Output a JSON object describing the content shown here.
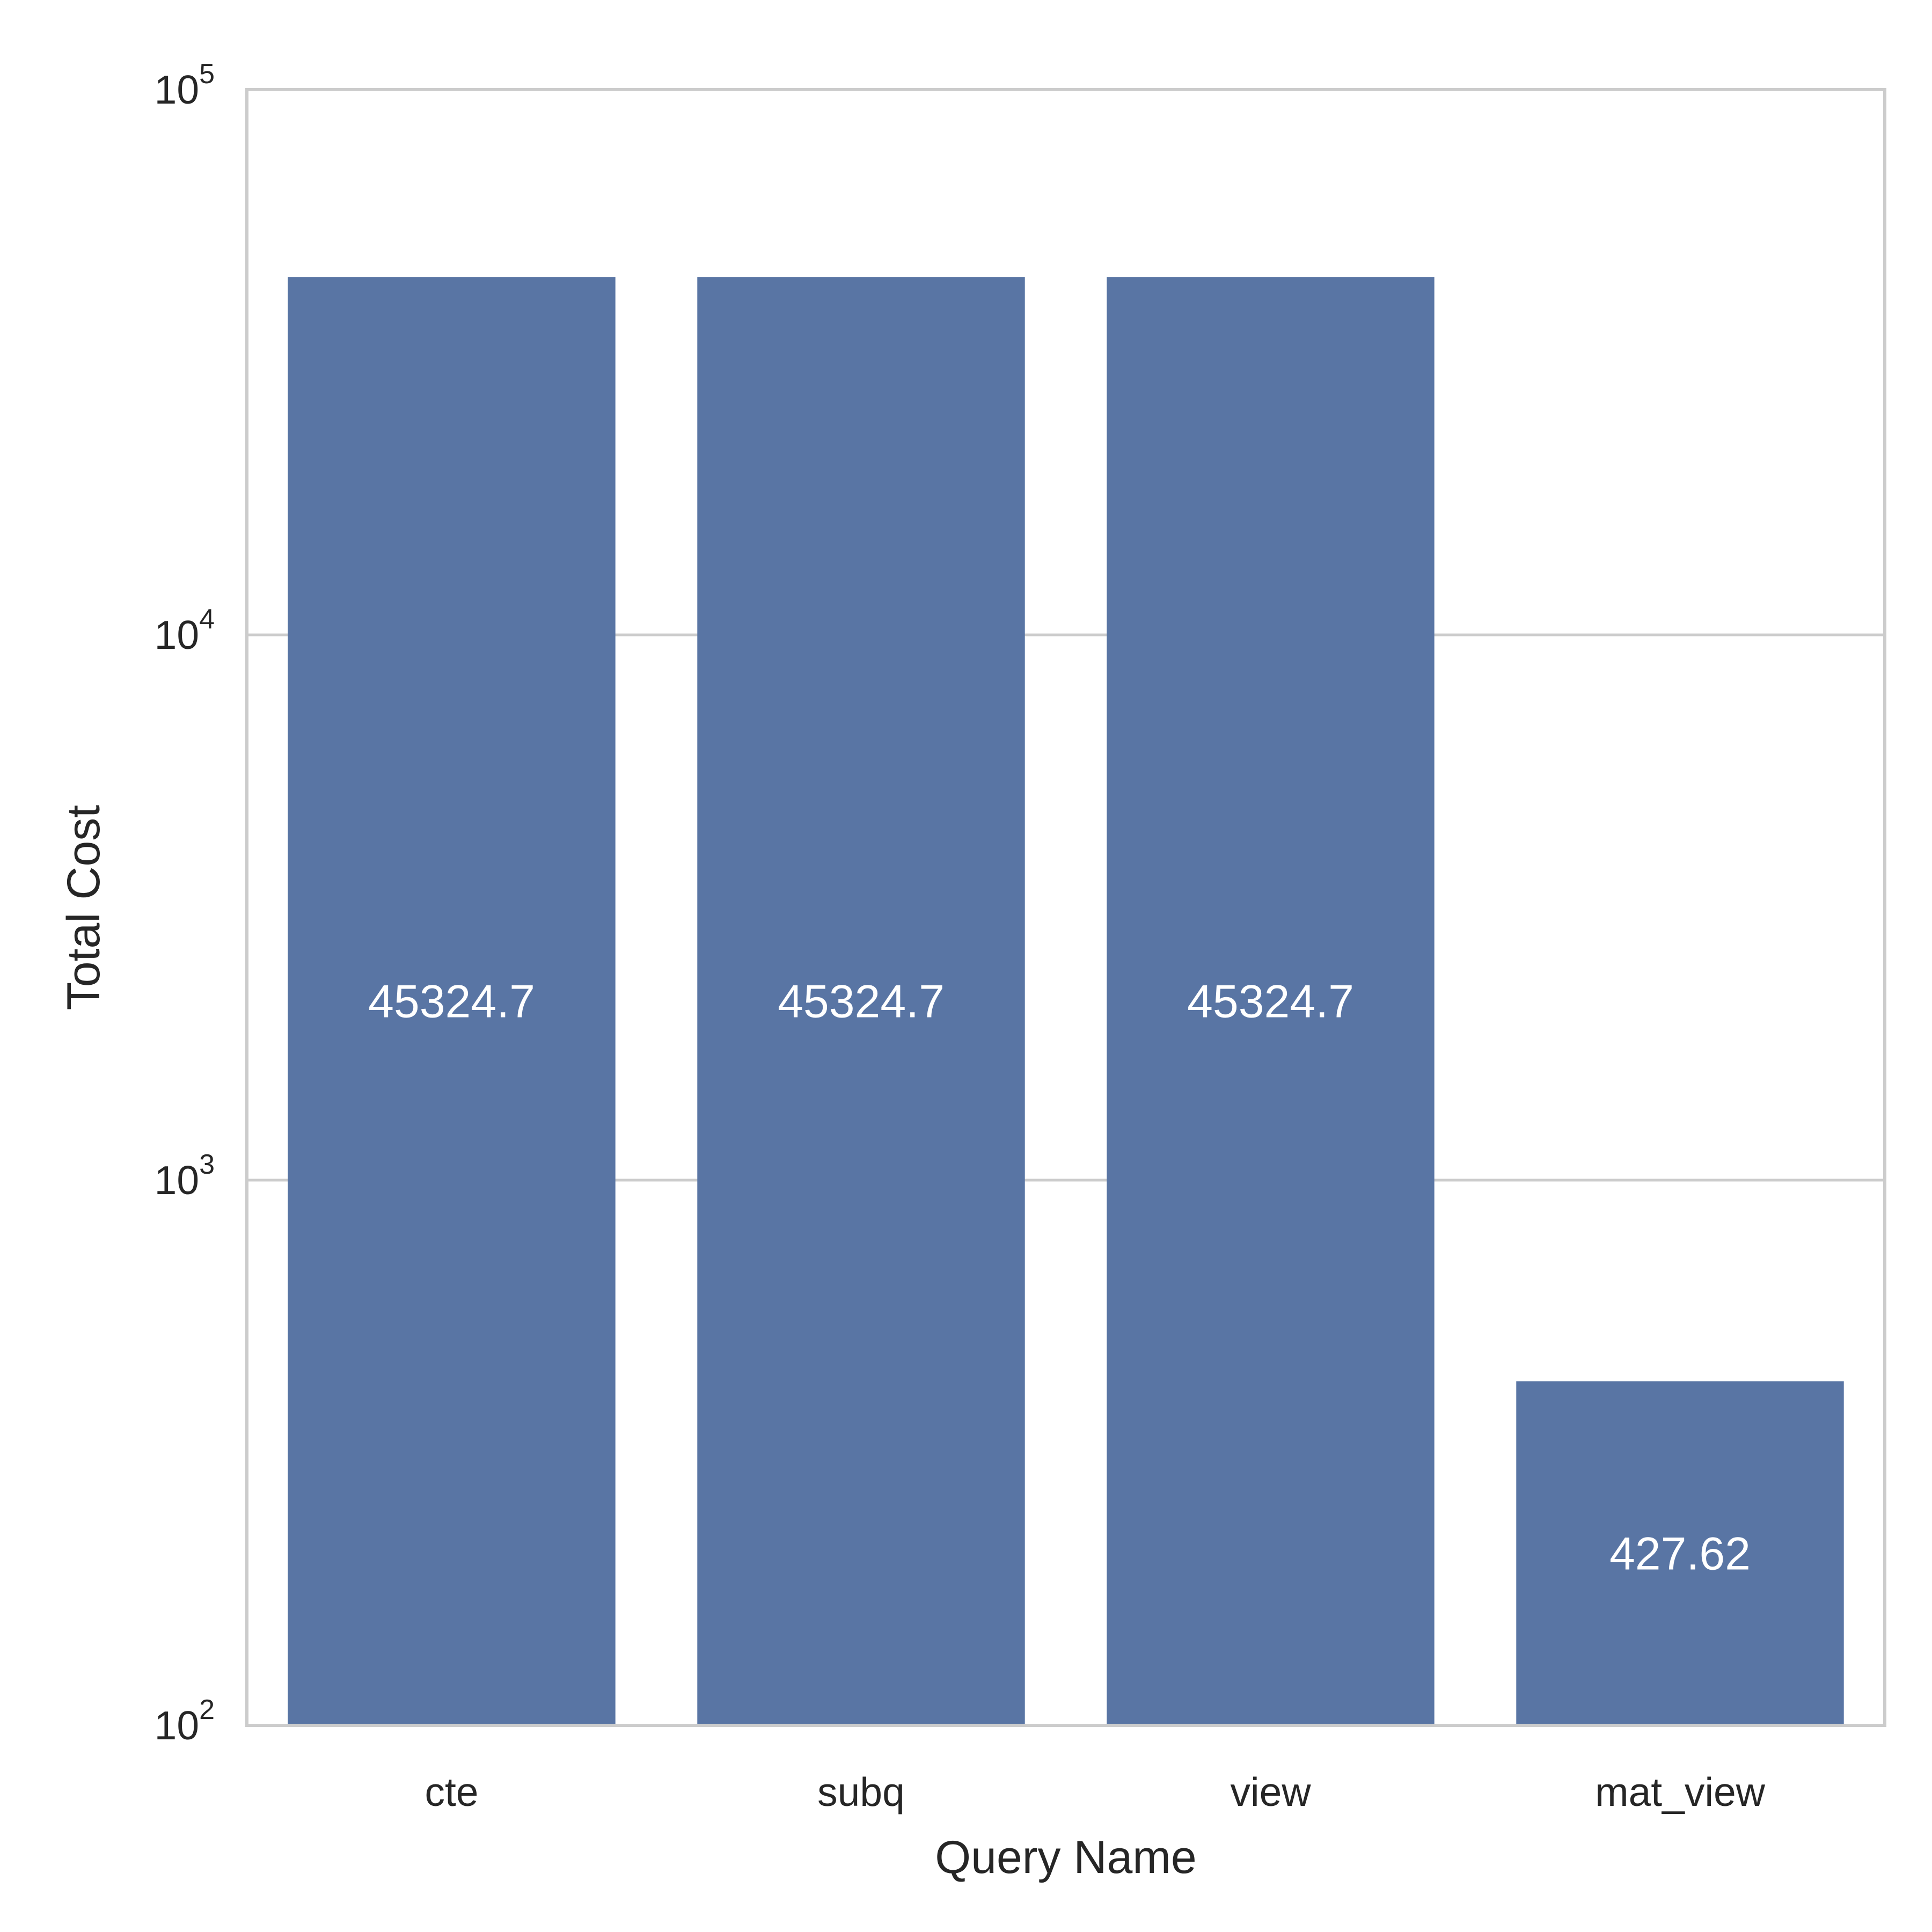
{
  "chart_data": {
    "type": "bar",
    "categories": [
      "cte",
      "subq",
      "view",
      "mat_view"
    ],
    "values": [
      45324.7,
      45324.7,
      45324.7,
      427.62
    ],
    "data_labels": [
      "45324.7",
      "45324.7",
      "45324.7",
      "427.62"
    ],
    "title": "",
    "xlabel": "Query Name",
    "ylabel": "Total Cost",
    "yscale": "log",
    "ylim": [
      100,
      100000
    ],
    "yticks": [
      {
        "value": 100,
        "base": "10",
        "exp": "2"
      },
      {
        "value": 1000,
        "base": "10",
        "exp": "3"
      },
      {
        "value": 10000,
        "base": "10",
        "exp": "4"
      },
      {
        "value": 100000,
        "base": "10",
        "exp": "5"
      }
    ],
    "grid": "horizontal",
    "legend": "none",
    "colors": {
      "bar": "#5975a4",
      "grid": "#cccccc",
      "spine": "#cccccc",
      "text": "#262626",
      "data_label": "#ffffff"
    }
  }
}
